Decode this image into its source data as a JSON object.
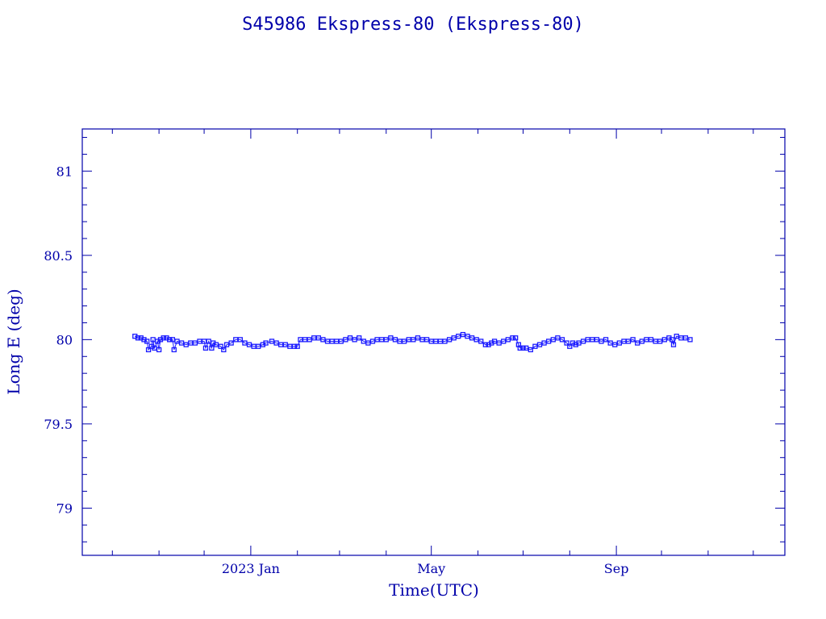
{
  "chart_data": {
    "type": "scatter",
    "title": "S45986 Ekspress-80  (Ekspress-80)",
    "xlabel": "Time(UTC)",
    "ylabel": "Long E (deg)",
    "x_ticks": [
      {
        "label": "2023 Jan",
        "date": "2023-01-01"
      },
      {
        "label": "May",
        "date": "2023-05-01"
      },
      {
        "label": "Sep",
        "date": "2023-09-01"
      }
    ],
    "xlim": [
      "2022-09-11",
      "2023-12-22"
    ],
    "ylim": [
      78.72,
      81.25
    ],
    "y_ticks": [
      79,
      79.5,
      80,
      80.5,
      81
    ],
    "y_tick_labels": [
      "79",
      "79.5",
      "80",
      "80.5",
      "81"
    ],
    "grid": false,
    "colors": {
      "axes": "#0000aa",
      "points": "#1a1aff"
    },
    "marker": "square",
    "series": [
      {
        "points": [
          [
            "2022-10-16",
            80.02
          ],
          [
            "2022-10-18",
            80.01
          ],
          [
            "2022-10-20",
            80.01
          ],
          [
            "2022-10-22",
            80.0
          ],
          [
            "2022-10-24",
            79.99
          ],
          [
            "2022-10-25",
            79.94
          ],
          [
            "2022-10-27",
            79.96
          ],
          [
            "2022-10-28",
            80.0
          ],
          [
            "2022-10-29",
            79.95
          ],
          [
            "2022-10-31",
            79.99
          ],
          [
            "2022-11-01",
            79.94
          ],
          [
            "2022-11-02",
            80.0
          ],
          [
            "2022-11-04",
            80.01
          ],
          [
            "2022-11-06",
            80.01
          ],
          [
            "2022-11-08",
            80.0
          ],
          [
            "2022-11-10",
            80.0
          ],
          [
            "2022-11-11",
            79.94
          ],
          [
            "2022-11-13",
            79.99
          ],
          [
            "2022-11-16",
            79.98
          ],
          [
            "2022-11-19",
            79.97
          ],
          [
            "2022-11-22",
            79.98
          ],
          [
            "2022-11-25",
            79.98
          ],
          [
            "2022-11-28",
            79.99
          ],
          [
            "2022-12-01",
            79.99
          ],
          [
            "2022-12-02",
            79.95
          ],
          [
            "2022-12-04",
            79.99
          ],
          [
            "2022-12-06",
            79.95
          ],
          [
            "2022-12-07",
            79.98
          ],
          [
            "2022-12-09",
            79.97
          ],
          [
            "2022-12-12",
            79.96
          ],
          [
            "2022-12-14",
            79.94
          ],
          [
            "2022-12-16",
            79.97
          ],
          [
            "2022-12-19",
            79.98
          ],
          [
            "2022-12-22",
            80.0
          ],
          [
            "2022-12-25",
            80.0
          ],
          [
            "2022-12-28",
            79.98
          ],
          [
            "2022-12-31",
            79.97
          ],
          [
            "2023-01-03",
            79.96
          ],
          [
            "2023-01-06",
            79.96
          ],
          [
            "2023-01-09",
            79.97
          ],
          [
            "2023-01-11",
            79.98
          ],
          [
            "2023-01-15",
            79.99
          ],
          [
            "2023-01-18",
            79.98
          ],
          [
            "2023-01-21",
            79.97
          ],
          [
            "2023-01-24",
            79.97
          ],
          [
            "2023-01-27",
            79.96
          ],
          [
            "2023-01-30",
            79.96
          ],
          [
            "2023-02-01",
            79.96
          ],
          [
            "2023-02-03",
            80.0
          ],
          [
            "2023-02-06",
            80.0
          ],
          [
            "2023-02-09",
            80.0
          ],
          [
            "2023-02-12",
            80.01
          ],
          [
            "2023-02-15",
            80.01
          ],
          [
            "2023-02-18",
            80.0
          ],
          [
            "2023-02-21",
            79.99
          ],
          [
            "2023-02-24",
            79.99
          ],
          [
            "2023-02-27",
            79.99
          ],
          [
            "2023-03-02",
            79.99
          ],
          [
            "2023-03-05",
            80.0
          ],
          [
            "2023-03-08",
            80.01
          ],
          [
            "2023-03-11",
            80.0
          ],
          [
            "2023-03-14",
            80.01
          ],
          [
            "2023-03-17",
            79.99
          ],
          [
            "2023-03-20",
            79.98
          ],
          [
            "2023-03-23",
            79.99
          ],
          [
            "2023-03-26",
            80.0
          ],
          [
            "2023-03-29",
            80.0
          ],
          [
            "2023-04-01",
            80.0
          ],
          [
            "2023-04-04",
            80.01
          ],
          [
            "2023-04-07",
            80.0
          ],
          [
            "2023-04-10",
            79.99
          ],
          [
            "2023-04-13",
            79.99
          ],
          [
            "2023-04-16",
            80.0
          ],
          [
            "2023-04-19",
            80.0
          ],
          [
            "2023-04-22",
            80.01
          ],
          [
            "2023-04-25",
            80.0
          ],
          [
            "2023-04-28",
            80.0
          ],
          [
            "2023-05-01",
            79.99
          ],
          [
            "2023-05-04",
            79.99
          ],
          [
            "2023-05-07",
            79.99
          ],
          [
            "2023-05-10",
            79.99
          ],
          [
            "2023-05-13",
            80.0
          ],
          [
            "2023-05-16",
            80.01
          ],
          [
            "2023-05-19",
            80.02
          ],
          [
            "2023-05-22",
            80.03
          ],
          [
            "2023-05-25",
            80.02
          ],
          [
            "2023-05-28",
            80.01
          ],
          [
            "2023-05-31",
            80.0
          ],
          [
            "2023-06-03",
            79.99
          ],
          [
            "2023-06-06",
            79.97
          ],
          [
            "2023-06-08",
            79.97
          ],
          [
            "2023-06-10",
            79.98
          ],
          [
            "2023-06-12",
            79.99
          ],
          [
            "2023-06-15",
            79.98
          ],
          [
            "2023-06-18",
            79.99
          ],
          [
            "2023-06-21",
            80.0
          ],
          [
            "2023-06-24",
            80.01
          ],
          [
            "2023-06-26",
            80.01
          ],
          [
            "2023-06-28",
            79.97
          ],
          [
            "2023-06-29",
            79.95
          ],
          [
            "2023-07-01",
            79.95
          ],
          [
            "2023-07-03",
            79.95
          ],
          [
            "2023-07-06",
            79.94
          ],
          [
            "2023-07-09",
            79.96
          ],
          [
            "2023-07-12",
            79.97
          ],
          [
            "2023-07-15",
            79.98
          ],
          [
            "2023-07-18",
            79.99
          ],
          [
            "2023-07-21",
            80.0
          ],
          [
            "2023-07-24",
            80.01
          ],
          [
            "2023-07-27",
            80.0
          ],
          [
            "2023-07-30",
            79.98
          ],
          [
            "2023-08-01",
            79.96
          ],
          [
            "2023-08-03",
            79.98
          ],
          [
            "2023-08-05",
            79.97
          ],
          [
            "2023-08-07",
            79.98
          ],
          [
            "2023-08-10",
            79.99
          ],
          [
            "2023-08-13",
            80.0
          ],
          [
            "2023-08-16",
            80.0
          ],
          [
            "2023-08-19",
            80.0
          ],
          [
            "2023-08-22",
            79.99
          ],
          [
            "2023-08-25",
            80.0
          ],
          [
            "2023-08-28",
            79.98
          ],
          [
            "2023-08-31",
            79.97
          ],
          [
            "2023-09-03",
            79.98
          ],
          [
            "2023-09-06",
            79.99
          ],
          [
            "2023-09-09",
            79.99
          ],
          [
            "2023-09-12",
            80.0
          ],
          [
            "2023-09-15",
            79.98
          ],
          [
            "2023-09-18",
            79.99
          ],
          [
            "2023-09-21",
            80.0
          ],
          [
            "2023-09-24",
            80.0
          ],
          [
            "2023-09-27",
            79.99
          ],
          [
            "2023-09-30",
            79.99
          ],
          [
            "2023-10-03",
            80.0
          ],
          [
            "2023-10-06",
            80.01
          ],
          [
            "2023-10-08",
            80.0
          ],
          [
            "2023-10-09",
            79.97
          ],
          [
            "2023-10-11",
            80.02
          ],
          [
            "2023-10-14",
            80.01
          ],
          [
            "2023-10-17",
            80.01
          ],
          [
            "2023-10-20",
            80.0
          ]
        ]
      }
    ]
  }
}
